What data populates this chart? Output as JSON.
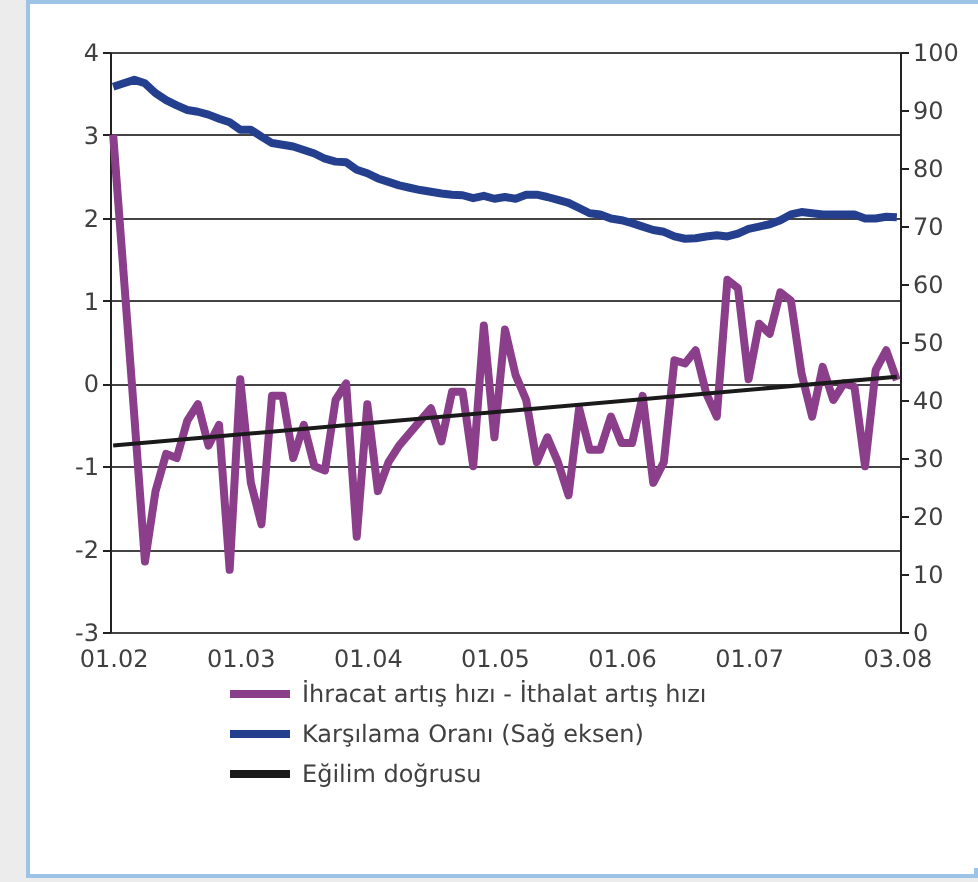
{
  "chart_data": {
    "type": "line",
    "categories": [
      "01.02",
      null,
      null,
      null,
      null,
      null,
      null,
      null,
      null,
      null,
      null,
      null,
      "01.03",
      null,
      null,
      null,
      null,
      null,
      null,
      null,
      null,
      null,
      null,
      null,
      "01.04",
      null,
      null,
      null,
      null,
      null,
      null,
      null,
      null,
      null,
      null,
      null,
      "01.05",
      null,
      null,
      null,
      null,
      null,
      null,
      null,
      null,
      null,
      null,
      null,
      "01.06",
      null,
      null,
      null,
      null,
      null,
      null,
      null,
      null,
      null,
      null,
      null,
      "01.07",
      null,
      null,
      null,
      null,
      null,
      null,
      null,
      null,
      null,
      null,
      null,
      null,
      null,
      "03.08"
    ],
    "series": [
      {
        "name": "İhracat artış hızı - İthalat artış hızı",
        "color": "#8b3f8b",
        "values": [
          3.0,
          1.3,
          -0.4,
          -2.15,
          -1.3,
          -0.85,
          -0.9,
          -0.45,
          -0.25,
          -0.75,
          -0.5,
          -2.25,
          0.05,
          -1.2,
          -1.7,
          -0.15,
          -0.15,
          -0.9,
          -0.5,
          -1.0,
          -1.05,
          -0.2,
          0.0,
          -1.85,
          -0.25,
          -1.3,
          -0.95,
          -0.75,
          -0.6,
          -0.45,
          -0.3,
          -0.7,
          -0.1,
          -0.1,
          -1.0,
          0.7,
          -0.65,
          0.65,
          0.1,
          -0.2,
          -0.95,
          -0.65,
          -0.95,
          -1.35,
          -0.3,
          -0.8,
          -0.8,
          -0.4,
          -0.72,
          -0.72,
          -0.15,
          -1.2,
          -0.95,
          0.28,
          0.24,
          0.4,
          -0.12,
          -0.4,
          1.25,
          1.15,
          0.05,
          0.72,
          0.6,
          1.1,
          1.0,
          0.12,
          -0.4,
          0.2,
          -0.2,
          0.0,
          -0.04,
          -1.0,
          0.16,
          0.4,
          0.04
        ]
      },
      {
        "name": "Karşılama Oranı (Sağ eksen)",
        "color": "#253f8f",
        "axis": "y2",
        "values": [
          94,
          94.6,
          95.2,
          94.6,
          92.9,
          91.7,
          90.8,
          90,
          89.7,
          89.2,
          88.5,
          87.9,
          86.6,
          86.6,
          85.4,
          84.3,
          84,
          83.7,
          83.1,
          82.5,
          81.6,
          81.1,
          81,
          79.7,
          79.1,
          78.2,
          77.6,
          77,
          76.6,
          76.2,
          75.9,
          75.6,
          75.4,
          75.3,
          74.8,
          75.2,
          74.7,
          75,
          74.7,
          75.4,
          75.4,
          75,
          74.5,
          74,
          73.1,
          72.2,
          72,
          71.3,
          71,
          70.5,
          69.9,
          69.3,
          69,
          68.2,
          67.8,
          67.9,
          68.2,
          68.4,
          68.2,
          68.7,
          69.5,
          69.9,
          70.3,
          71,
          72,
          72.4,
          72.2,
          72,
          72,
          72,
          72,
          71.3,
          71.3,
          71.6,
          71.5
        ]
      },
      {
        "name": "Eğilim doğrusu",
        "color": "#1a1a1a",
        "type": "line",
        "x": [
          "01.02",
          "03.08"
        ],
        "values": [
          -0.75,
          0.08
        ]
      }
    ],
    "ylim": [
      -3,
      4
    ],
    "yticks": [
      -3,
      -2,
      -1,
      0,
      1,
      2,
      3,
      4
    ],
    "y2lim": [
      0,
      100
    ],
    "y2ticks": [
      0,
      10,
      20,
      30,
      40,
      50,
      60,
      70,
      80,
      90,
      100
    ],
    "grid": "y",
    "legend": "bottom"
  }
}
